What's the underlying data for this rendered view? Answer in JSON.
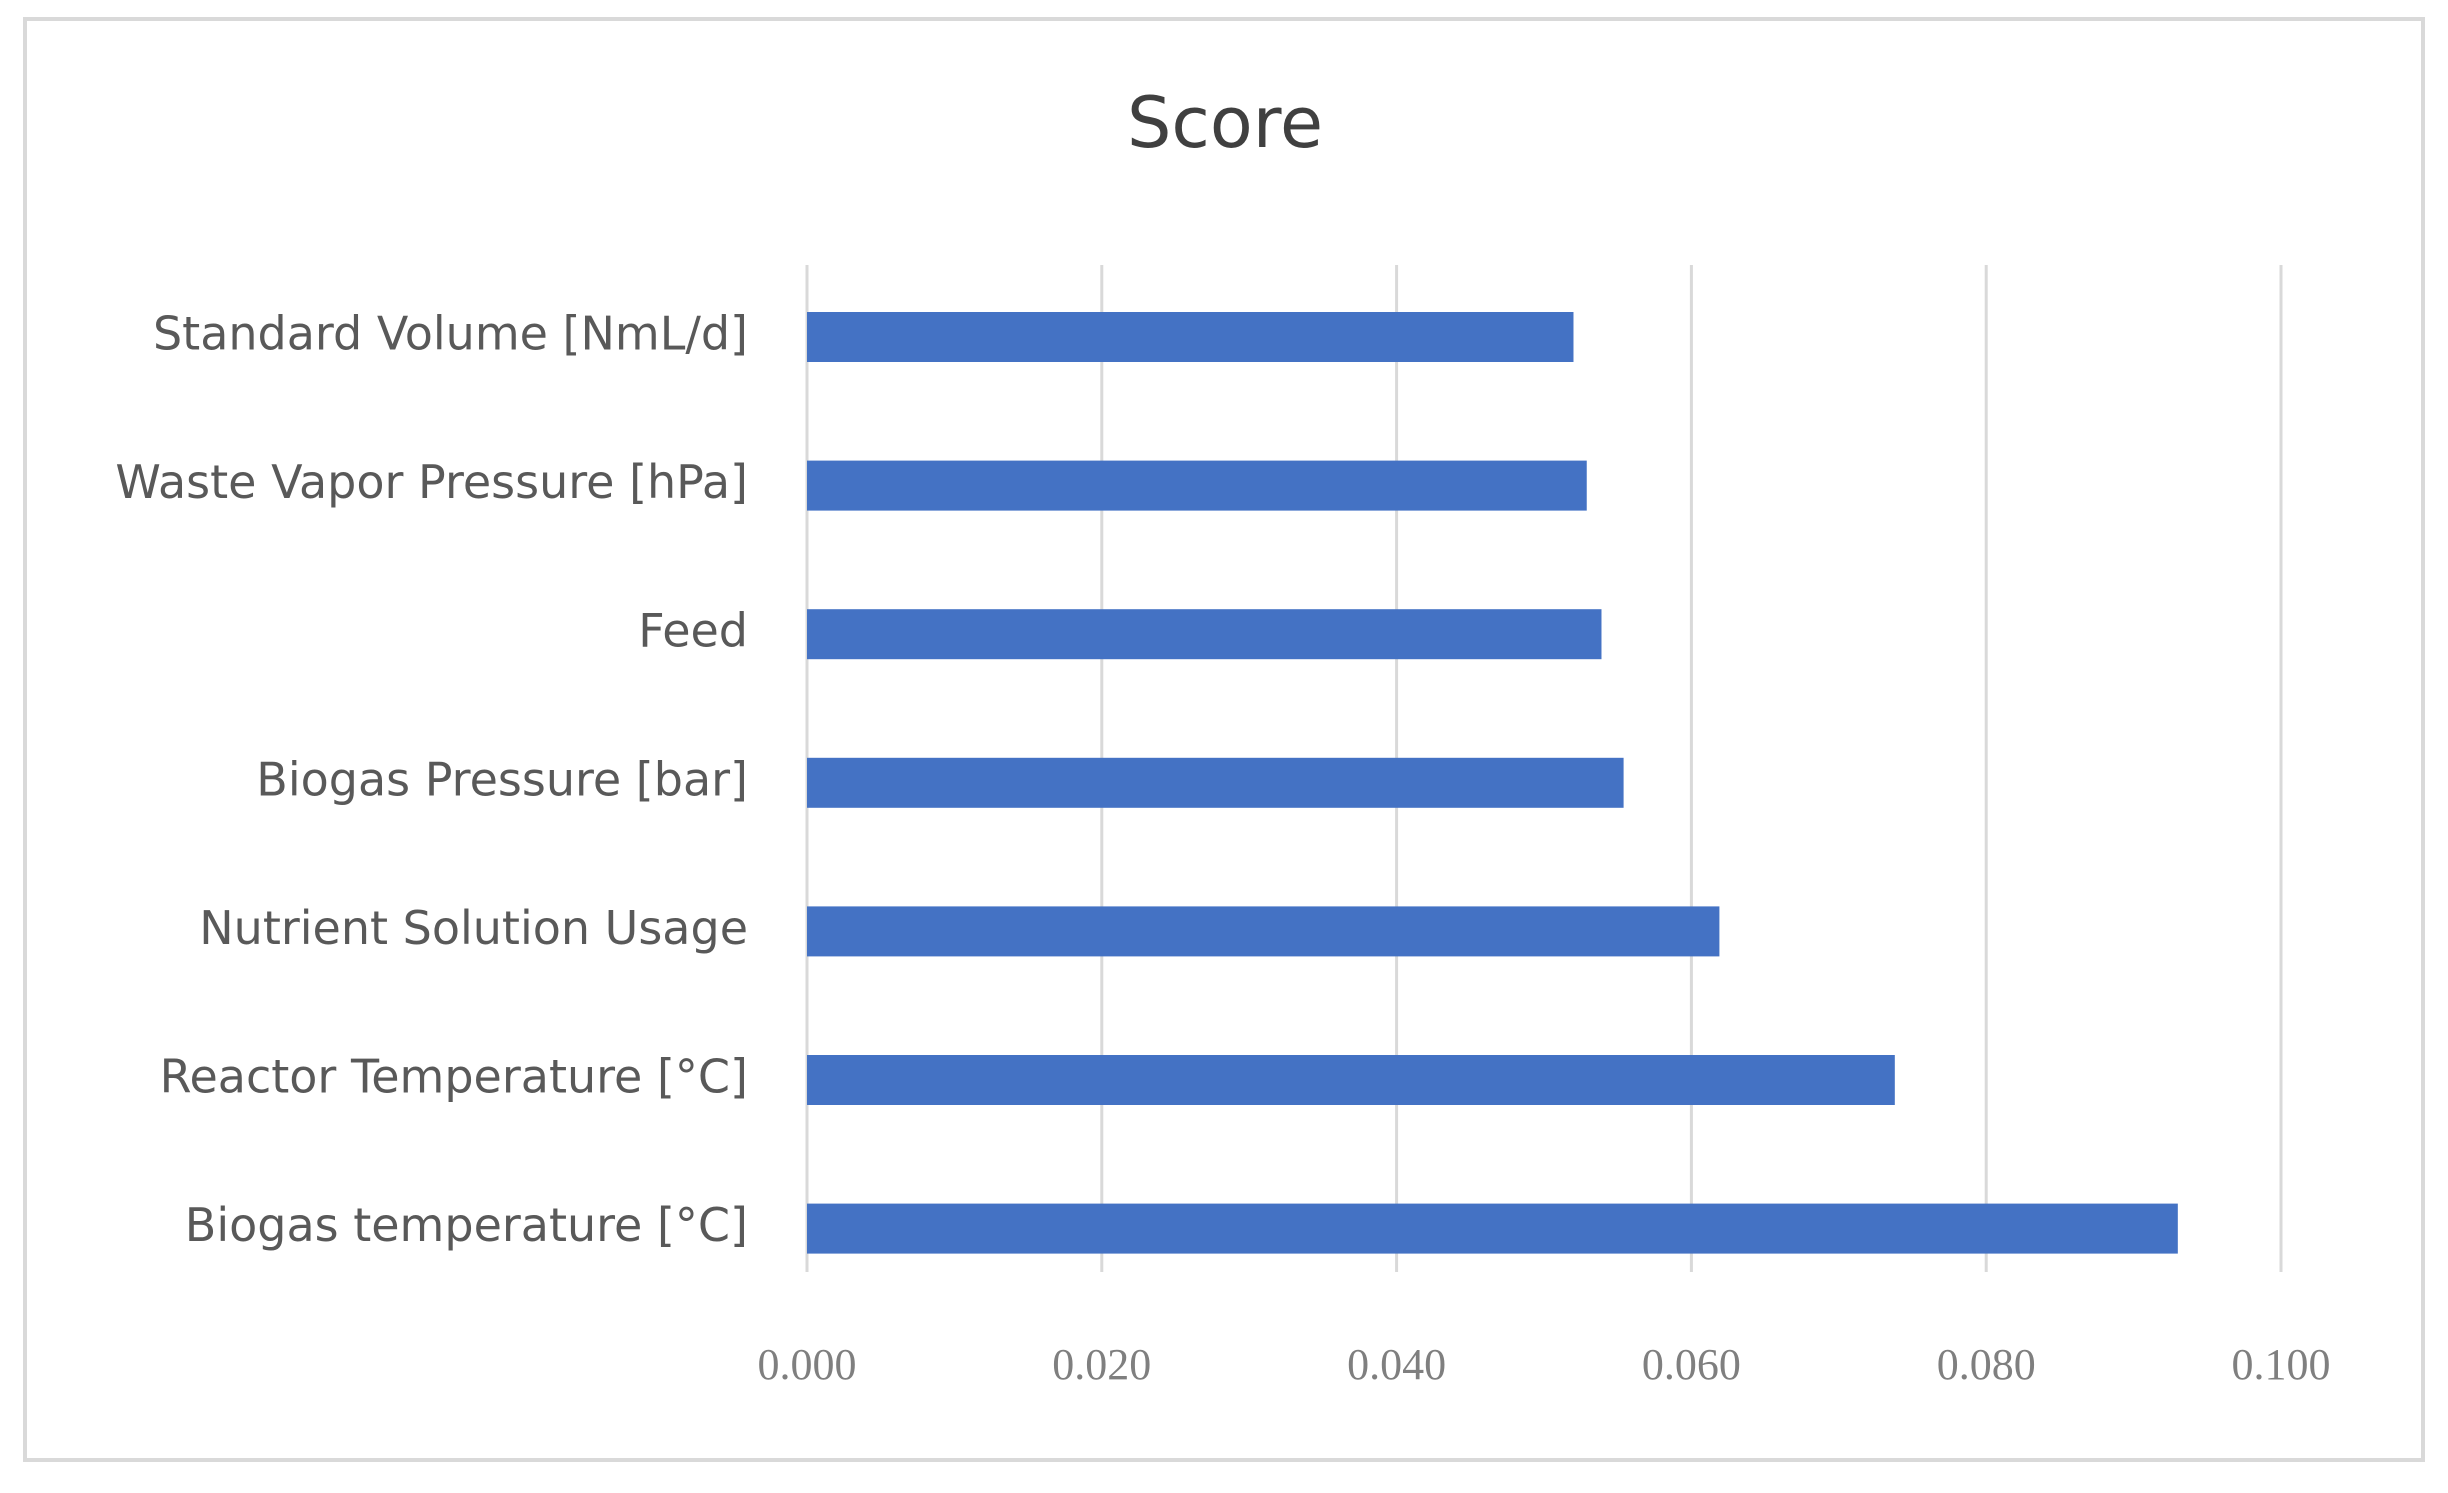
{
  "chart_data": {
    "type": "barh",
    "title": "Score",
    "categories": [
      "Standard Volume [NmL/d]",
      "Waste Vapor Pressure [hPa]",
      "Feed",
      "Biogas Pressure [bar]",
      "Nutrient Solution Usage",
      "Reactor Temperature [°C]",
      "Biogas temperature [°C]"
    ],
    "values": [
      0.052,
      0.0529,
      0.0539,
      0.0554,
      0.0619,
      0.0738,
      0.093
    ],
    "color": "#4472c4",
    "xlim": [
      0,
      0.1
    ],
    "xticks": [
      {
        "value": 0,
        "label": "0.000"
      },
      {
        "value": 0.02,
        "label": "0.020"
      },
      {
        "value": 0.04,
        "label": "0.040"
      },
      {
        "value": 0.06,
        "label": "0.060"
      },
      {
        "value": 0.08,
        "label": "0.080"
      },
      {
        "value": 0.1,
        "label": "0.100"
      }
    ],
    "grid": true
  }
}
